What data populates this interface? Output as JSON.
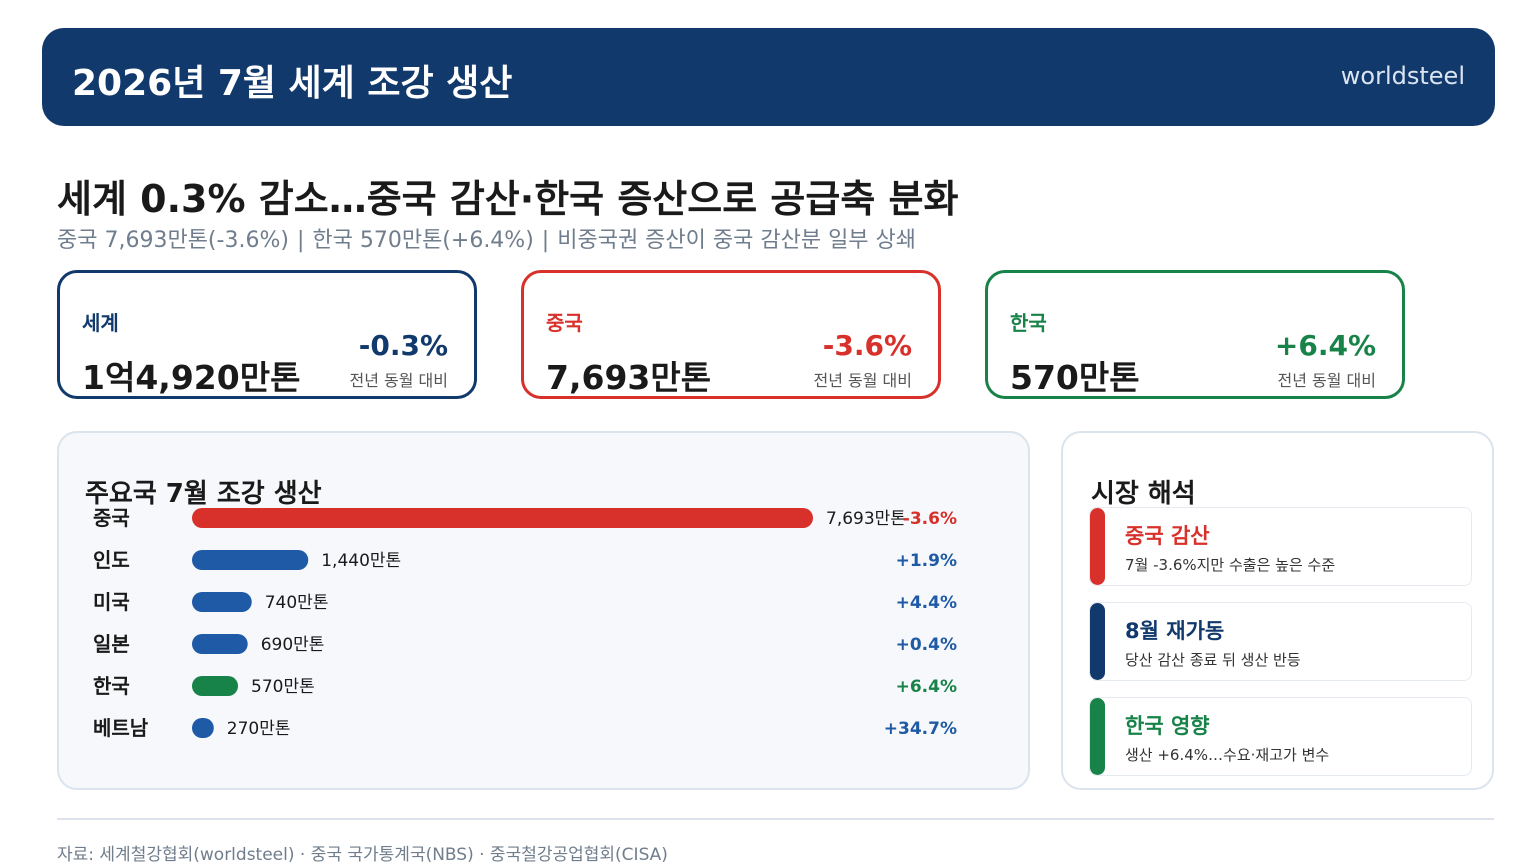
{
  "banner": {
    "title": "2026년 7월 세계 조강 생산",
    "brand": "worldsteel"
  },
  "headline": "세계 0.3% 감소…중국 감산·한국 증산으로 공급축 분화",
  "subline": {
    "part1": "중국 7,693만톤(-3.6%)",
    "sep": "|",
    "part2": "한국 570만톤(+6.4%)",
    "part3": "비중국권 증산이 중국 감산분 일부 상쇄"
  },
  "kpis": [
    {
      "label": "세계",
      "value": "1억4,920만톤",
      "change": "-0.3%",
      "note": "전년 동월 대비",
      "color": "#12396c"
    },
    {
      "label": "중국",
      "value": "7,693만톤",
      "change": "-3.6%",
      "note": "전년 동월 대비",
      "color": "#d8302a"
    },
    {
      "label": "한국",
      "value": "570만톤",
      "change": "+6.4%",
      "note": "전년 동월 대비",
      "color": "#188348"
    }
  ],
  "chart_data": {
    "type": "bar",
    "orientation": "horizontal",
    "title": "주요국 7월 조강 생산",
    "unit": "만톤",
    "categories": [
      "중국",
      "인도",
      "미국",
      "일본",
      "한국",
      "베트남"
    ],
    "values": [
      7693,
      1440,
      740,
      690,
      570,
      270
    ],
    "value_labels": [
      "7,693만톤",
      "1,440만톤",
      "740만톤",
      "690만톤",
      "570만톤",
      "270만톤"
    ],
    "yoy_change": [
      "-3.6%",
      "+1.9%",
      "+4.4%",
      "+0.4%",
      "+6.4%",
      "+34.7%"
    ],
    "bar_colors": [
      "#d8302a",
      "#1f5aa6",
      "#1f5aa6",
      "#1f5aa6",
      "#188348",
      "#1f5aa6"
    ],
    "change_colors": [
      "#d8302a",
      "#1f5aa6",
      "#1f5aa6",
      "#1f5aa6",
      "#188348",
      "#1f5aa6"
    ]
  },
  "side": {
    "title": "시장 해석",
    "notes": [
      {
        "title": "중국 감산",
        "text": "7월 -3.6%지만 수출은 높은 수준",
        "color": "#d8302a"
      },
      {
        "title": "8월 재가동",
        "text": "당산 감산 종료 뒤 생산 반등",
        "color": "#12396c"
      },
      {
        "title": "한국 영향",
        "text": "생산 +6.4%…수요·재고가 변수",
        "color": "#188348"
      }
    ]
  },
  "footer": "자료: 세계철강협회(worldsteel) · 중국 국가통계국(NBS) · 중국철강공업협회(CISA)"
}
